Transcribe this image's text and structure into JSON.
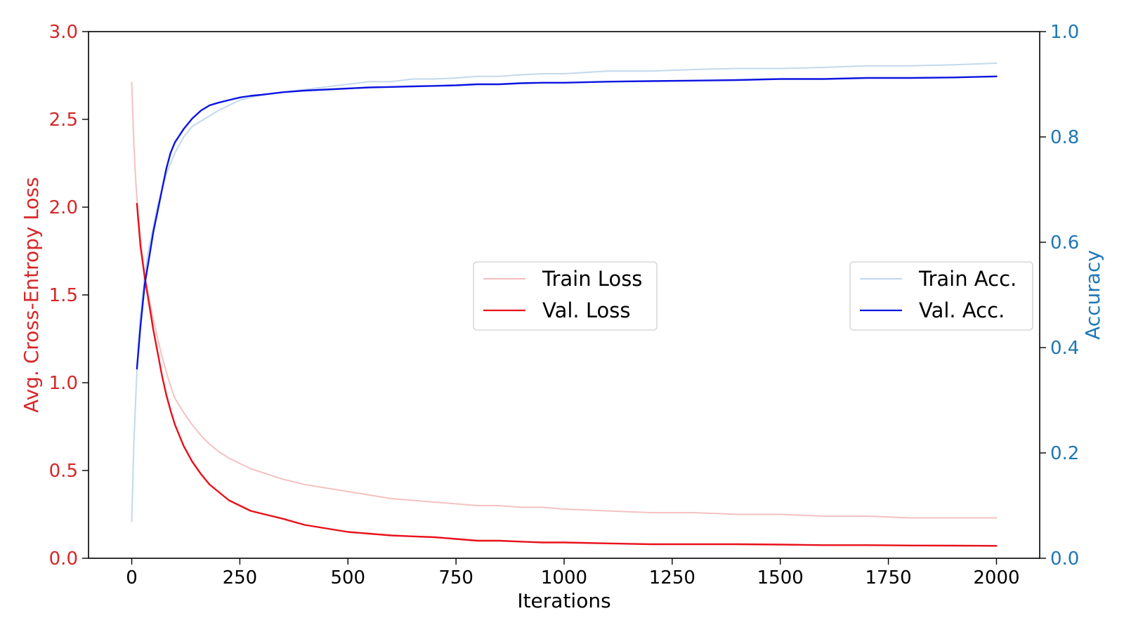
{
  "chart_data": {
    "type": "line",
    "xlabel": "Iterations",
    "ylabel_left": "Avg. Cross-Entropy Loss",
    "ylabel_right": "Accuracy",
    "xlim": [
      -100,
      2100
    ],
    "ylim_left": [
      0,
      3.0
    ],
    "ylim_right": [
      0,
      1.0
    ],
    "x_ticks": [
      0,
      250,
      500,
      750,
      1000,
      1250,
      1500,
      1750,
      2000
    ],
    "x_tick_labels": [
      "0",
      "250",
      "500",
      "750",
      "1000",
      "1250",
      "1500",
      "1750",
      "2000"
    ],
    "left_ticks": [
      0,
      0.5,
      1.0,
      1.5,
      2.0,
      2.5,
      3.0
    ],
    "left_tick_labels": [
      "0.0",
      "0.5",
      "1.0",
      "1.5",
      "2.0",
      "2.5",
      "3.0"
    ],
    "right_ticks": [
      0,
      0.2,
      0.4,
      0.6,
      0.8,
      1.0
    ],
    "right_tick_labels": [
      "0.0",
      "0.2",
      "0.4",
      "0.6",
      "0.8",
      "1.0"
    ],
    "grid": false,
    "legends": [
      {
        "placement": "center",
        "entries": [
          "train_loss",
          "val_loss"
        ]
      },
      {
        "placement": "center-right",
        "entries": [
          "train_acc",
          "val_acc"
        ]
      }
    ],
    "colors": {
      "left_axis": "#d62728",
      "right_axis": "#1f77b4",
      "train_loss": "#f4c2c2",
      "val_loss": "#e8101a",
      "train_acc": "#c3d9ec",
      "val_acc": "#0a14e0"
    },
    "series": [
      {
        "key": "train_loss",
        "name": "Train Loss",
        "axis": "left",
        "x": [
          0,
          5,
          10,
          15,
          20,
          25,
          30,
          40,
          50,
          60,
          70,
          80,
          90,
          100,
          120,
          140,
          160,
          180,
          200,
          225,
          250,
          275,
          300,
          350,
          400,
          450,
          500,
          550,
          600,
          650,
          700,
          750,
          800,
          850,
          900,
          950,
          1000,
          1100,
          1200,
          1300,
          1400,
          1500,
          1600,
          1700,
          1800,
          1900,
          2000
        ],
        "y": [
          2.71,
          2.35,
          2.12,
          1.95,
          1.82,
          1.72,
          1.62,
          1.48,
          1.36,
          1.25,
          1.15,
          1.06,
          0.98,
          0.91,
          0.83,
          0.76,
          0.7,
          0.65,
          0.61,
          0.57,
          0.54,
          0.51,
          0.49,
          0.45,
          0.42,
          0.4,
          0.38,
          0.36,
          0.34,
          0.33,
          0.32,
          0.31,
          0.3,
          0.3,
          0.29,
          0.29,
          0.28,
          0.27,
          0.26,
          0.26,
          0.25,
          0.25,
          0.24,
          0.24,
          0.23,
          0.23,
          0.23
        ]
      },
      {
        "key": "val_loss",
        "name": "Val. Loss",
        "axis": "left",
        "x": [
          12,
          20,
          30,
          40,
          50,
          60,
          70,
          80,
          90,
          100,
          120,
          140,
          160,
          180,
          200,
          225,
          250,
          275,
          300,
          350,
          400,
          450,
          500,
          550,
          600,
          650,
          700,
          750,
          800,
          850,
          900,
          950,
          1000,
          1100,
          1200,
          1300,
          1400,
          1500,
          1600,
          1700,
          1800,
          1900,
          2000
        ],
        "y": [
          2.02,
          1.78,
          1.6,
          1.45,
          1.3,
          1.17,
          1.04,
          0.93,
          0.84,
          0.76,
          0.64,
          0.55,
          0.48,
          0.42,
          0.38,
          0.33,
          0.3,
          0.27,
          0.255,
          0.225,
          0.19,
          0.17,
          0.15,
          0.14,
          0.13,
          0.125,
          0.12,
          0.11,
          0.1,
          0.1,
          0.095,
          0.09,
          0.09,
          0.085,
          0.08,
          0.08,
          0.08,
          0.078,
          0.075,
          0.075,
          0.073,
          0.072,
          0.071
        ]
      },
      {
        "key": "train_acc",
        "name": "Train Acc.",
        "axis": "right",
        "x": [
          0,
          5,
          10,
          15,
          20,
          25,
          30,
          40,
          50,
          60,
          70,
          80,
          90,
          100,
          120,
          140,
          160,
          180,
          200,
          225,
          250,
          275,
          300,
          350,
          400,
          450,
          500,
          550,
          600,
          650,
          700,
          750,
          800,
          850,
          900,
          950,
          1000,
          1100,
          1200,
          1300,
          1400,
          1500,
          1600,
          1700,
          1800,
          1900,
          2000
        ],
        "y": [
          0.07,
          0.22,
          0.32,
          0.4,
          0.46,
          0.5,
          0.54,
          0.59,
          0.63,
          0.67,
          0.7,
          0.73,
          0.75,
          0.77,
          0.8,
          0.82,
          0.83,
          0.84,
          0.85,
          0.86,
          0.87,
          0.875,
          0.88,
          0.885,
          0.89,
          0.895,
          0.9,
          0.905,
          0.905,
          0.91,
          0.91,
          0.912,
          0.915,
          0.915,
          0.918,
          0.92,
          0.92,
          0.925,
          0.925,
          0.928,
          0.93,
          0.93,
          0.932,
          0.935,
          0.935,
          0.937,
          0.94
        ]
      },
      {
        "key": "val_acc",
        "name": "Val. Acc.",
        "axis": "right",
        "x": [
          12,
          20,
          30,
          40,
          50,
          60,
          70,
          80,
          90,
          100,
          120,
          140,
          160,
          180,
          200,
          225,
          250,
          275,
          300,
          350,
          400,
          450,
          500,
          550,
          600,
          650,
          700,
          750,
          800,
          850,
          900,
          950,
          1000,
          1100,
          1200,
          1300,
          1400,
          1500,
          1600,
          1700,
          1800,
          1900,
          2000
        ],
        "y": [
          0.36,
          0.44,
          0.52,
          0.57,
          0.62,
          0.66,
          0.7,
          0.74,
          0.77,
          0.79,
          0.815,
          0.835,
          0.85,
          0.86,
          0.865,
          0.87,
          0.875,
          0.878,
          0.88,
          0.885,
          0.888,
          0.89,
          0.892,
          0.894,
          0.895,
          0.896,
          0.897,
          0.898,
          0.9,
          0.9,
          0.902,
          0.903,
          0.903,
          0.905,
          0.906,
          0.907,
          0.908,
          0.91,
          0.91,
          0.912,
          0.912,
          0.913,
          0.915
        ]
      }
    ]
  }
}
